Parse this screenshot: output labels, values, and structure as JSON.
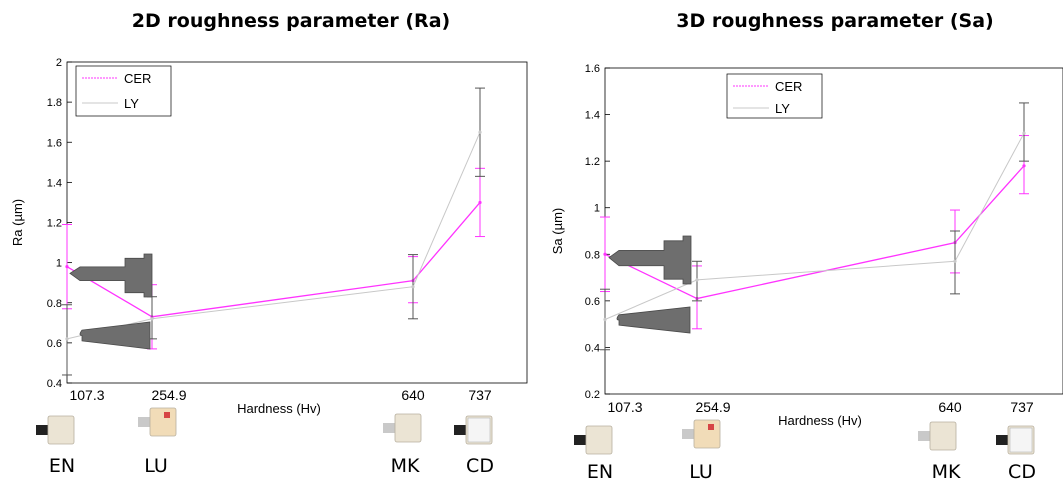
{
  "chart_data": [
    {
      "type": "line",
      "title": "2D roughness parameter (Ra)",
      "xlabel": "Hardness (Hv)",
      "ylabel": "Ra (µm)",
      "ylim": [
        0.4,
        2
      ],
      "yticks": [
        "0.4",
        "0.6",
        "0.8",
        "1",
        "1.2",
        "1.4",
        "1.6",
        "1.8",
        "2"
      ],
      "x": [
        107.3,
        254.9,
        640,
        737
      ],
      "x_labels": [
        "107.3",
        "254.9",
        "640",
        "737"
      ],
      "materials": [
        "EN",
        "LU",
        "MK",
        "CD"
      ],
      "legend_position": "top-left",
      "grid": false,
      "series": [
        {
          "name": "CER",
          "color": "#ff33ff",
          "values": [
            0.98,
            0.73,
            0.91,
            1.3
          ],
          "err_low": [
            0.77,
            0.57,
            0.8,
            1.13
          ],
          "err_high": [
            1.19,
            0.89,
            1.03,
            1.47
          ]
        },
        {
          "name": "LY",
          "color": "#c8c8c8",
          "values": [
            0.62,
            0.72,
            0.88,
            1.65
          ],
          "err_low": [
            0.44,
            0.62,
            0.72,
            1.43
          ],
          "err_high": [
            0.79,
            0.83,
            1.04,
            1.87
          ]
        }
      ]
    },
    {
      "type": "line",
      "title": "3D roughness parameter (Sa)",
      "xlabel": "Hardness (Hv)",
      "ylabel": "Sa (µm)",
      "ylim": [
        0.2,
        1.6
      ],
      "yticks": [
        "0.2",
        "0.4",
        "0.6",
        "0.8",
        "1",
        "1.2",
        "1.4",
        "1.6"
      ],
      "x": [
        107.3,
        254.9,
        640,
        737
      ],
      "x_labels": [
        "107.3",
        "254.9",
        "640",
        "737"
      ],
      "materials": [
        "EN",
        "LU",
        "MK",
        "CD"
      ],
      "legend_position": "top-left",
      "grid": false,
      "series": [
        {
          "name": "CER",
          "color": "#ff33ff",
          "values": [
            0.8,
            0.61,
            0.85,
            1.18
          ],
          "err_low": [
            0.64,
            0.48,
            0.72,
            1.06
          ],
          "err_high": [
            0.96,
            0.75,
            0.99,
            1.31
          ]
        },
        {
          "name": "LY",
          "color": "#c8c8c8",
          "values": [
            0.52,
            0.69,
            0.77,
            1.32
          ],
          "err_low": [
            0.39,
            0.6,
            0.63,
            1.2
          ],
          "err_high": [
            0.65,
            0.77,
            0.9,
            1.45
          ]
        }
      ]
    }
  ]
}
